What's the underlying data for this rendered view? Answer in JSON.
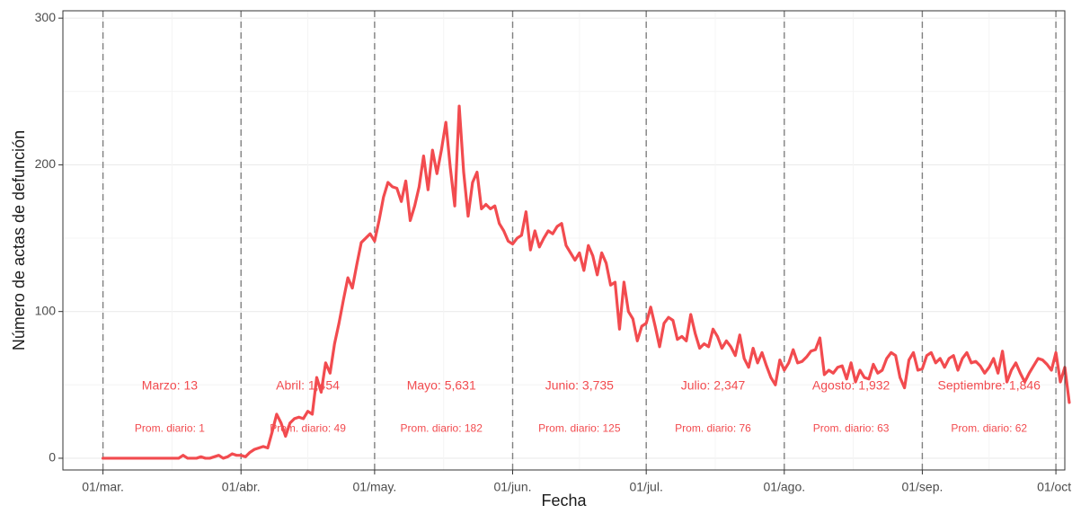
{
  "chart_data": {
    "type": "line",
    "title": "",
    "xlabel": "Fecha",
    "ylabel": "Número de actas de defunción",
    "ylim": [
      -8,
      305
    ],
    "xlim": [
      "2020-02-21",
      "2020-10-03"
    ],
    "y_ticks": [
      0,
      100,
      200,
      300
    ],
    "y_tick_labels": [
      "0",
      "100",
      "200",
      "300"
    ],
    "x_ticks": [
      "2020-03-01",
      "2020-04-01",
      "2020-05-01",
      "2020-06-01",
      "2020-07-01",
      "2020-08-01",
      "2020-09-01",
      "2020-10-01"
    ],
    "x_tick_labels": [
      "01/mar.",
      "01/abr.",
      "01/may.",
      "01/jun.",
      "01/jul.",
      "01/ago.",
      "01/sep.",
      "01/oct."
    ],
    "grid": true,
    "line_color": "#f24b4f",
    "vlines": [
      "2020-03-01",
      "2020-04-01",
      "2020-05-01",
      "2020-06-01",
      "2020-07-01",
      "2020-08-01",
      "2020-09-01",
      "2020-10-01"
    ],
    "series": [
      {
        "name": "",
        "x_start": "2020-03-01",
        "values": [
          0,
          0,
          0,
          0,
          0,
          0,
          0,
          0,
          0,
          0,
          0,
          0,
          0,
          0,
          0,
          0,
          0,
          0,
          2,
          0,
          0,
          0,
          1,
          0,
          0,
          1,
          2,
          0,
          1,
          3,
          2,
          2,
          1,
          4,
          6,
          7,
          8,
          7,
          18,
          30,
          24,
          15,
          24,
          27,
          28,
          27,
          32,
          30,
          55,
          45,
          65,
          58,
          78,
          92,
          108,
          123,
          116,
          132,
          147,
          150,
          153,
          148,
          162,
          178,
          188,
          185,
          184,
          175,
          189,
          162,
          172,
          185,
          206,
          183,
          210,
          194,
          210,
          229,
          198,
          172,
          240,
          195,
          165,
          188,
          195,
          170,
          173,
          170,
          172,
          160,
          155,
          148,
          146,
          150,
          152,
          168,
          142,
          155,
          144,
          150,
          155,
          153,
          158,
          160,
          145,
          140,
          135,
          140,
          128,
          145,
          138,
          125,
          140,
          133,
          118,
          120,
          88,
          120,
          100,
          95,
          80,
          90,
          92,
          103,
          90,
          76,
          92,
          96,
          94,
          81,
          83,
          80,
          98,
          85,
          75,
          78,
          76,
          88,
          83,
          75,
          80,
          76,
          70,
          84,
          68,
          62,
          75,
          65,
          72,
          63,
          55,
          50,
          67,
          60,
          65,
          74,
          65,
          66,
          69,
          73,
          74,
          82,
          57,
          60,
          58,
          62,
          63,
          54,
          65,
          52,
          60,
          55,
          54,
          64,
          58,
          60,
          68,
          72,
          70,
          55,
          48,
          67,
          72,
          60,
          61,
          70,
          72,
          65,
          68,
          62,
          68,
          70,
          60,
          68,
          72,
          65,
          66,
          63,
          58,
          62,
          68,
          58,
          73,
          52,
          60,
          65,
          58,
          52,
          58,
          63,
          68,
          67,
          64,
          60,
          72,
          52,
          62,
          38
        ]
      }
    ],
    "annotations": [
      {
        "month": "Marzo: 13",
        "avg": "Prom. diario: 1",
        "center": "2020-03-16"
      },
      {
        "month": "Abril: 1,454",
        "avg": "Prom. diario: 49",
        "center": "2020-04-16"
      },
      {
        "month": "Mayo: 5,631",
        "avg": "Prom. diario: 182",
        "center": "2020-05-16"
      },
      {
        "month": "Junio: 3,735",
        "avg": "Prom. diario: 125",
        "center": "2020-06-16"
      },
      {
        "month": "Julio: 2,347",
        "avg": "Prom. diario: 76",
        "center": "2020-07-16"
      },
      {
        "month": "Agosto: 1,932",
        "avg": "Prom. diario: 63",
        "center": "2020-08-16"
      },
      {
        "month": "Septiembre: 1,846",
        "avg": "Prom. diario: 62",
        "center": "2020-09-16"
      }
    ],
    "annotation_y_total": 49,
    "annotation_y_avg": 20,
    "annotation_color": "#f24b4f"
  }
}
